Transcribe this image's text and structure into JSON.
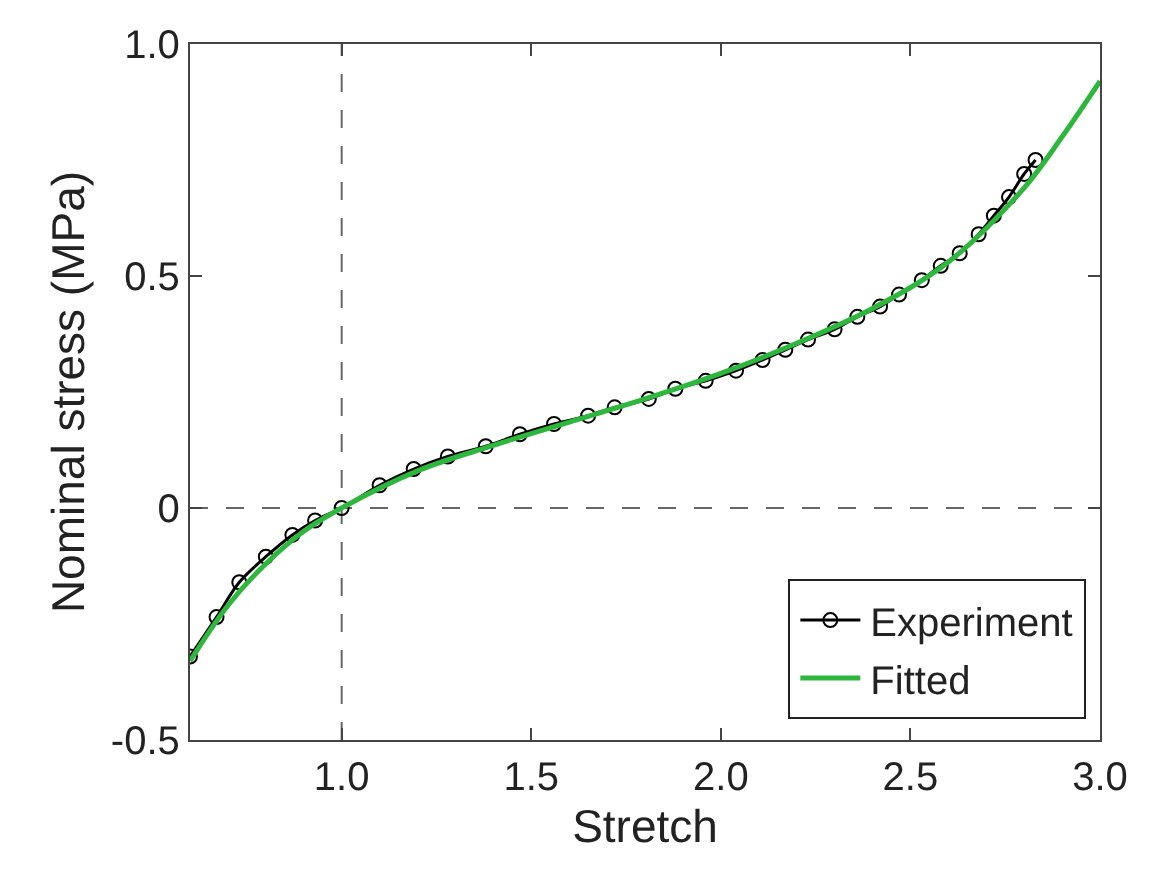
{
  "chart_data": {
    "type": "line",
    "xlabel": "Stretch",
    "ylabel": "Nominal stress (MPa)",
    "xlim": [
      0.6,
      3.0
    ],
    "xticks": [
      {
        "value": 1.0,
        "label": "1.0"
      },
      {
        "value": 1.5,
        "label": "1.5"
      },
      {
        "value": 2.0,
        "label": "2.0"
      },
      {
        "value": 2.5,
        "label": "2.5"
      },
      {
        "value": 3.0,
        "label": "3.0"
      }
    ],
    "ylim": [
      -0.5,
      1.0
    ],
    "yticks": [
      {
        "value": -0.5,
        "label": "-0.5"
      },
      0,
      {
        "value": 0.5,
        "label": "0.5"
      },
      {
        "value": 1.0,
        "label": "1.0"
      }
    ],
    "grid": false,
    "legend": "bottom right",
    "line_style": "solid",
    "ref_lines": [
      {
        "axis": "x",
        "value": 1.0,
        "color": "#666666",
        "line_style": "dashed"
      },
      {
        "axis": "y",
        "value": 0,
        "color": "#666666",
        "line_style": "dashed"
      }
    ],
    "series": [
      {
        "name": "Experiment",
        "color": "#000000",
        "marker": "circle",
        "x": [
          0.6,
          0.67,
          0.73,
          0.8,
          0.87,
          0.93,
          1.0,
          1.1,
          1.19,
          1.28,
          1.38,
          1.47,
          1.56,
          1.65,
          1.72,
          1.81,
          1.88,
          1.96,
          2.04,
          2.11,
          2.17,
          2.23,
          2.3,
          2.36,
          2.42,
          2.47,
          2.53,
          2.58,
          2.63,
          2.68,
          2.72,
          2.76,
          2.8,
          2.83
        ],
        "values": [
          -0.32,
          -0.235,
          -0.16,
          -0.105,
          -0.058,
          -0.027,
          0.0,
          0.049,
          0.084,
          0.111,
          0.133,
          0.159,
          0.181,
          0.199,
          0.217,
          0.235,
          0.257,
          0.274,
          0.296,
          0.319,
          0.341,
          0.363,
          0.385,
          0.412,
          0.434,
          0.46,
          0.491,
          0.522,
          0.549,
          0.59,
          0.63,
          0.67,
          0.72,
          0.75
        ]
      },
      {
        "name": "Fitted",
        "color": "#2db83d",
        "marker": "none",
        "x": [
          0.6,
          0.7,
          0.8,
          0.9,
          1.0,
          1.2,
          1.4,
          1.6,
          1.8,
          2.0,
          2.2,
          2.4,
          2.6,
          2.8,
          2.9,
          3.0
        ],
        "values": [
          -0.33,
          -0.21,
          -0.12,
          -0.05,
          0.0,
          0.08,
          0.135,
          0.185,
          0.235,
          0.29,
          0.355,
          0.43,
          0.53,
          0.69,
          0.8,
          0.92
        ]
      }
    ]
  }
}
